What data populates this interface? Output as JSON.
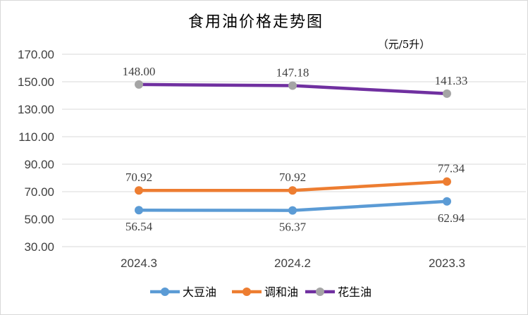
{
  "chart_data": {
    "type": "line",
    "title": "食用油价格走势图",
    "unit_note": "（元/5升）",
    "categories": [
      "2024.3",
      "2024.2",
      "2023.3"
    ],
    "ylim": [
      30,
      170
    ],
    "yticks": [
      "170.00",
      "150.00",
      "130.00",
      "110.00",
      "90.00",
      "70.00",
      "50.00",
      "30.00"
    ],
    "ytick_values": [
      170,
      150,
      130,
      110,
      90,
      70,
      50,
      30
    ],
    "grid": true,
    "legend_position": "bottom",
    "series": [
      {
        "name": "大豆油",
        "color": "#5b9bd5",
        "values": [
          56.54,
          56.37,
          62.94
        ],
        "labels": [
          "56.54",
          "56.37",
          "62.94"
        ],
        "label_side": "below"
      },
      {
        "name": "调和油",
        "color": "#ed7d31",
        "values": [
          70.92,
          70.92,
          77.34
        ],
        "labels": [
          "70.92",
          "70.92",
          "77.34"
        ],
        "label_side": "above"
      },
      {
        "name": "花生油",
        "color": "#7030a0",
        "marker_color": "#a5a5a5",
        "values": [
          148.0,
          147.18,
          141.33
        ],
        "labels": [
          "148.00",
          "147.18",
          "141.33"
        ],
        "label_side": "above"
      }
    ]
  }
}
